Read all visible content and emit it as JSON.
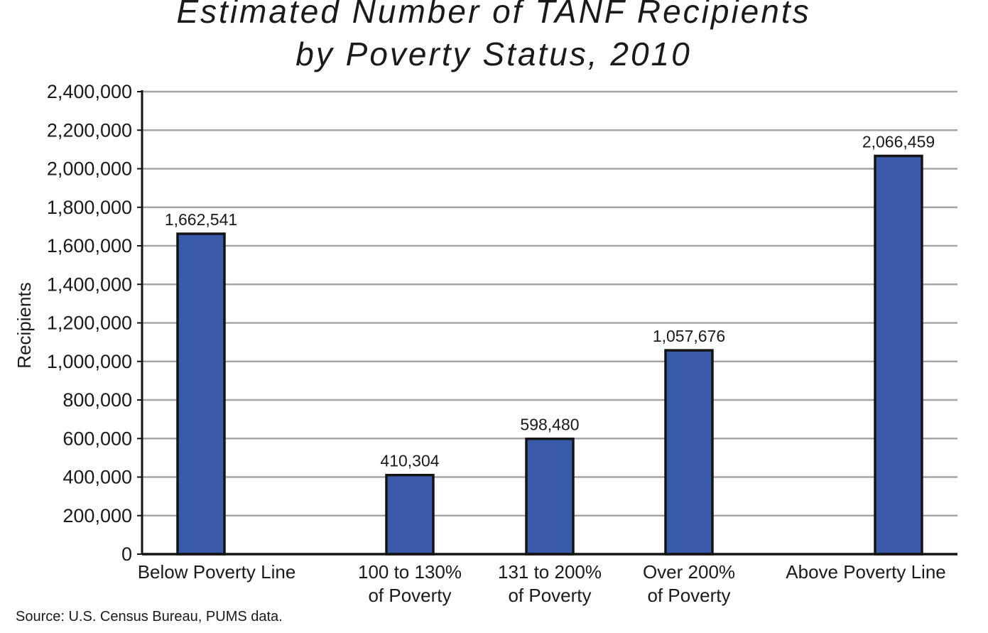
{
  "colors": {
    "bar": "#3a5ba9",
    "bar_stroke": "#141414",
    "grid": "#a6a6a6",
    "axis": "#141414",
    "text": "#1a1a1a"
  },
  "chart_data": {
    "type": "bar",
    "title_lines": [
      "Estimated Number of TANF Recipients",
      "by Poverty Status, 2010"
    ],
    "ylabel": "Recipients",
    "xlabel": "",
    "ylim": [
      0,
      2400000
    ],
    "yticks": [
      0,
      200000,
      400000,
      600000,
      800000,
      1000000,
      1200000,
      1400000,
      1600000,
      1800000,
      2000000,
      2200000,
      2400000
    ],
    "ytick_labels": [
      "0",
      "200,000",
      "400,000",
      "600,000",
      "800,000",
      "1,000,000",
      "1,200,000",
      "1,400,000",
      "1,600,000",
      "1,800,000",
      "2,000,000",
      "2,200,000",
      "2,400,000"
    ],
    "grid": true,
    "legend": "none",
    "categories": [
      [
        "Below Poverty Line"
      ],
      [
        "100 to 130%",
        "of Poverty"
      ],
      [
        "131 to 200%",
        "of Poverty"
      ],
      [
        "Over 200%",
        "of Poverty"
      ],
      [
        "Above Poverty Line"
      ]
    ],
    "values": [
      1662541,
      410304,
      598480,
      1057676,
      2066459
    ],
    "data_labels": [
      "1,662,541",
      "410,304",
      "598,480",
      "1,057,676",
      "2,066,459"
    ],
    "source": "Source: U.S. Census Bureau, PUMS data."
  }
}
